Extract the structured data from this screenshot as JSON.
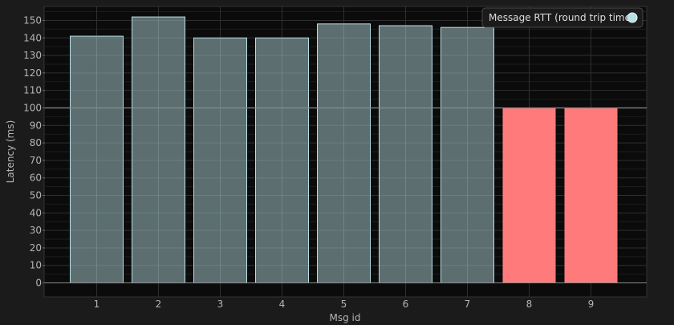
{
  "chart_data": {
    "type": "bar",
    "xlabel": "Msg id",
    "ylabel": "Latency (ms)",
    "ylim": [
      -8,
      158
    ],
    "yticks": [
      0,
      10,
      20,
      30,
      40,
      50,
      60,
      70,
      80,
      90,
      100,
      110,
      120,
      130,
      140,
      150
    ],
    "categories": [
      "1",
      "2",
      "3",
      "4",
      "5",
      "6",
      "7",
      "8",
      "9"
    ],
    "series": [
      {
        "name": "Message RTT (round trip time)",
        "values": [
          141,
          152,
          140,
          140,
          148,
          147,
          146,
          100,
          100
        ],
        "color": "#b6dfe6"
      }
    ],
    "highlight": {
      "indices": [
        7,
        8
      ],
      "color": "#ff7b7b"
    },
    "reference_line": 100,
    "grid": true,
    "legend_position": "top-right",
    "colors": {
      "background": "#1b1b1b",
      "plot_background": "#0b0b0b",
      "grid": "#2e2e2e",
      "bar_fill": "#5d6e70",
      "bar_stroke": "#b6dfe6",
      "highlight_fill": "#ff7b7b"
    }
  }
}
